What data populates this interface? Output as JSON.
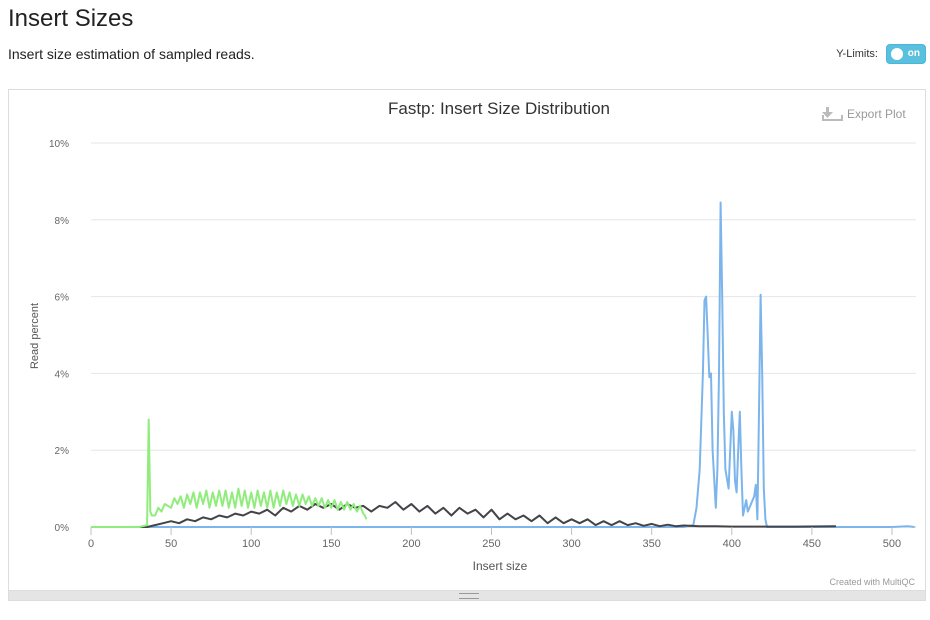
{
  "section": {
    "title": "Insert Sizes",
    "description": "Insert size estimation of sampled reads."
  },
  "ylimits": {
    "label": "Y-Limits:",
    "state": "on"
  },
  "export_label": "Export Plot",
  "credit": "Created with MultiQC",
  "chart_data": {
    "type": "line",
    "title": "Fastp: Insert Size Distribution",
    "xlabel": "Insert size",
    "ylabel": "Read percent",
    "xlim": [
      0,
      515
    ],
    "ylim": [
      0,
      10
    ],
    "x_ticks": [
      0,
      50,
      100,
      150,
      200,
      250,
      300,
      350,
      400,
      450,
      500
    ],
    "x_tick_labels": [
      "0",
      "50",
      "100",
      "150",
      "200",
      "250",
      "300",
      "350",
      "400",
      "450",
      "500"
    ],
    "y_ticks": [
      0,
      2,
      4,
      6,
      8,
      10
    ],
    "y_tick_labels": [
      "0%",
      "2%",
      "4%",
      "6%",
      "8%",
      "10%"
    ],
    "grid": true,
    "legend": "none",
    "series": [
      {
        "color": "#7cb5ec",
        "points": [
          [
            0,
            0
          ],
          [
            100,
            0
          ],
          [
            200,
            0
          ],
          [
            300,
            0
          ],
          [
            370,
            0
          ],
          [
            376,
            0.05
          ],
          [
            378,
            0.5
          ],
          [
            380,
            1.5
          ],
          [
            382,
            4
          ],
          [
            383,
            5.9
          ],
          [
            384,
            6.0
          ],
          [
            385,
            5
          ],
          [
            386,
            3.9
          ],
          [
            387,
            4.0
          ],
          [
            388,
            2
          ],
          [
            390,
            0.5
          ],
          [
            391,
            1.5
          ],
          [
            392,
            4
          ],
          [
            393,
            8.45
          ],
          [
            394,
            6
          ],
          [
            395,
            3
          ],
          [
            396,
            1.5
          ],
          [
            398,
            1.0
          ],
          [
            399,
            2
          ],
          [
            400,
            3.0
          ],
          [
            401,
            2.5
          ],
          [
            402,
            1.2
          ],
          [
            403,
            0.9
          ],
          [
            404,
            2
          ],
          [
            405,
            3.0
          ],
          [
            406,
            1.5
          ],
          [
            407,
            0.3
          ],
          [
            408,
            0.5
          ],
          [
            409,
            0.7
          ],
          [
            410,
            0.4
          ],
          [
            412,
            0.6
          ],
          [
            414,
            0.8
          ],
          [
            415,
            1.1
          ],
          [
            416,
            0.2
          ],
          [
            417,
            3
          ],
          [
            418,
            6.05
          ],
          [
            419,
            4
          ],
          [
            420,
            1
          ],
          [
            421,
            0.2
          ],
          [
            422,
            0
          ],
          [
            460,
            0
          ],
          [
            500,
            0
          ],
          [
            510,
            0.02
          ],
          [
            514,
            0
          ]
        ]
      },
      {
        "color": "#434348",
        "points": [
          [
            0,
            0
          ],
          [
            30,
            0
          ],
          [
            35,
            0
          ],
          [
            40,
            0.05
          ],
          [
            45,
            0.1
          ],
          [
            50,
            0.15
          ],
          [
            55,
            0.1
          ],
          [
            60,
            0.2
          ],
          [
            65,
            0.15
          ],
          [
            70,
            0.25
          ],
          [
            75,
            0.2
          ],
          [
            80,
            0.3
          ],
          [
            85,
            0.25
          ],
          [
            90,
            0.35
          ],
          [
            95,
            0.3
          ],
          [
            100,
            0.4
          ],
          [
            105,
            0.35
          ],
          [
            110,
            0.45
          ],
          [
            115,
            0.3
          ],
          [
            120,
            0.5
          ],
          [
            125,
            0.4
          ],
          [
            130,
            0.55
          ],
          [
            135,
            0.45
          ],
          [
            140,
            0.6
          ],
          [
            145,
            0.5
          ],
          [
            150,
            0.6
          ],
          [
            155,
            0.45
          ],
          [
            160,
            0.6
          ],
          [
            165,
            0.5
          ],
          [
            170,
            0.55
          ],
          [
            175,
            0.4
          ],
          [
            180,
            0.55
          ],
          [
            185,
            0.5
          ],
          [
            190,
            0.65
          ],
          [
            195,
            0.45
          ],
          [
            200,
            0.6
          ],
          [
            205,
            0.4
          ],
          [
            210,
            0.55
          ],
          [
            215,
            0.35
          ],
          [
            220,
            0.5
          ],
          [
            225,
            0.3
          ],
          [
            230,
            0.5
          ],
          [
            235,
            0.35
          ],
          [
            240,
            0.45
          ],
          [
            245,
            0.25
          ],
          [
            250,
            0.45
          ],
          [
            255,
            0.2
          ],
          [
            260,
            0.35
          ],
          [
            265,
            0.2
          ],
          [
            270,
            0.3
          ],
          [
            275,
            0.15
          ],
          [
            280,
            0.3
          ],
          [
            285,
            0.1
          ],
          [
            290,
            0.25
          ],
          [
            295,
            0.1
          ],
          [
            300,
            0.2
          ],
          [
            305,
            0.1
          ],
          [
            310,
            0.2
          ],
          [
            315,
            0.05
          ],
          [
            320,
            0.15
          ],
          [
            325,
            0.05
          ],
          [
            330,
            0.15
          ],
          [
            335,
            0.05
          ],
          [
            340,
            0.1
          ],
          [
            345,
            0.03
          ],
          [
            350,
            0.08
          ],
          [
            355,
            0.02
          ],
          [
            360,
            0.06
          ],
          [
            365,
            0.02
          ],
          [
            370,
            0.04
          ],
          [
            380,
            0.02
          ],
          [
            390,
            0.02
          ],
          [
            400,
            0.01
          ],
          [
            420,
            0.01
          ],
          [
            440,
            0.01
          ],
          [
            465,
            0.02
          ]
        ]
      },
      {
        "color": "#90ed7d",
        "points": [
          [
            0,
            0
          ],
          [
            30,
            0
          ],
          [
            35,
            0.05
          ],
          [
            36,
            2.8
          ],
          [
            37,
            0.4
          ],
          [
            38,
            0.3
          ],
          [
            40,
            0.3
          ],
          [
            42,
            0.5
          ],
          [
            44,
            0.4
          ],
          [
            46,
            0.6
          ],
          [
            48,
            0.55
          ],
          [
            50,
            0.5
          ],
          [
            52,
            0.75
          ],
          [
            54,
            0.6
          ],
          [
            56,
            0.8
          ],
          [
            58,
            0.5
          ],
          [
            60,
            0.85
          ],
          [
            62,
            0.6
          ],
          [
            64,
            0.9
          ],
          [
            66,
            0.5
          ],
          [
            68,
            0.9
          ],
          [
            70,
            0.6
          ],
          [
            72,
            0.95
          ],
          [
            74,
            0.5
          ],
          [
            76,
            0.9
          ],
          [
            78,
            0.55
          ],
          [
            80,
            0.95
          ],
          [
            82,
            0.55
          ],
          [
            84,
            0.95
          ],
          [
            86,
            0.5
          ],
          [
            88,
            0.9
          ],
          [
            90,
            0.5
          ],
          [
            92,
            1.0
          ],
          [
            94,
            0.55
          ],
          [
            96,
            0.95
          ],
          [
            98,
            0.5
          ],
          [
            100,
            0.9
          ],
          [
            102,
            0.5
          ],
          [
            104,
            0.95
          ],
          [
            106,
            0.55
          ],
          [
            108,
            0.9
          ],
          [
            110,
            0.5
          ],
          [
            112,
            0.95
          ],
          [
            114,
            0.5
          ],
          [
            116,
            0.9
          ],
          [
            118,
            0.55
          ],
          [
            120,
            0.95
          ],
          [
            122,
            0.6
          ],
          [
            124,
            0.9
          ],
          [
            126,
            0.55
          ],
          [
            128,
            0.85
          ],
          [
            130,
            0.55
          ],
          [
            132,
            0.85
          ],
          [
            134,
            0.6
          ],
          [
            136,
            0.8
          ],
          [
            138,
            0.55
          ],
          [
            140,
            0.75
          ],
          [
            142,
            0.55
          ],
          [
            144,
            0.75
          ],
          [
            146,
            0.5
          ],
          [
            148,
            0.7
          ],
          [
            150,
            0.5
          ],
          [
            152,
            0.7
          ],
          [
            154,
            0.45
          ],
          [
            156,
            0.65
          ],
          [
            158,
            0.45
          ],
          [
            160,
            0.65
          ],
          [
            162,
            0.45
          ],
          [
            164,
            0.6
          ],
          [
            166,
            0.4
          ],
          [
            168,
            0.55
          ],
          [
            170,
            0.35
          ],
          [
            171,
            0.3
          ],
          [
            172,
            0.2
          ]
        ]
      }
    ]
  }
}
